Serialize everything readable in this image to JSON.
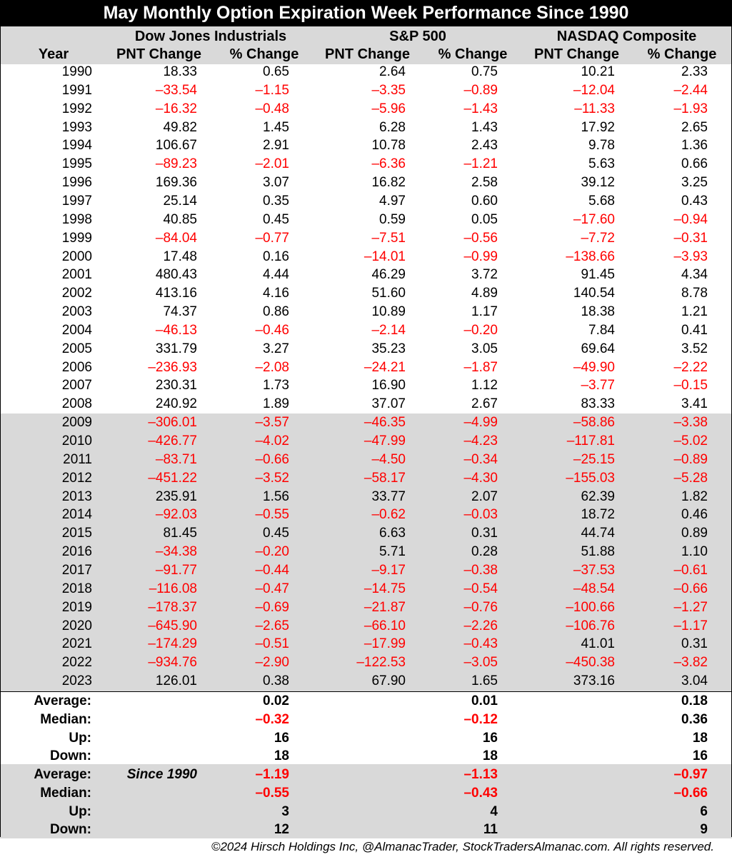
{
  "title": "May Monthly Option Expiration Week Performance Since 1990",
  "groups": [
    "Dow Jones Industrials",
    "S&P 500",
    "NASDAQ Composite"
  ],
  "columns": [
    "Year",
    "PNT Change",
    "% Change",
    "PNT Change",
    "% Change",
    "PNT Change",
    "% Change"
  ],
  "footer": "©2024 Hirsch Holdings Inc, @AlmanacTrader, StockTradersAlmanac.com. All rights reserved.",
  "colors": {
    "negative": "#ff0000",
    "shade": "#d9d9d9",
    "title_bg": "#000000"
  },
  "chart_data": {
    "type": "table",
    "title": "May Monthly Option Expiration Week Performance Since 1990",
    "rows": [
      [
        "1990",
        "18.33",
        "0.65",
        "2.64",
        "0.75",
        "10.21",
        "2.33"
      ],
      [
        "1991",
        "–33.54",
        "–1.15",
        "–3.35",
        "–0.89",
        "–12.04",
        "–2.44"
      ],
      [
        "1992",
        "–16.32",
        "–0.48",
        "–5.96",
        "–1.43",
        "–11.33",
        "–1.93"
      ],
      [
        "1993",
        "49.82",
        "1.45",
        "6.28",
        "1.43",
        "17.92",
        "2.65"
      ],
      [
        "1994",
        "106.67",
        "2.91",
        "10.78",
        "2.43",
        "9.78",
        "1.36"
      ],
      [
        "1995",
        "–89.23",
        "–2.01",
        "–6.36",
        "–1.21",
        "5.63",
        "0.66"
      ],
      [
        "1996",
        "169.36",
        "3.07",
        "16.82",
        "2.58",
        "39.12",
        "3.25"
      ],
      [
        "1997",
        "25.14",
        "0.35",
        "4.97",
        "0.60",
        "5.68",
        "0.43"
      ],
      [
        "1998",
        "40.85",
        "0.45",
        "0.59",
        "0.05",
        "–17.60",
        "–0.94"
      ],
      [
        "1999",
        "–84.04",
        "–0.77",
        "–7.51",
        "–0.56",
        "–7.72",
        "–0.31"
      ],
      [
        "2000",
        "17.48",
        "0.16",
        "–14.01",
        "–0.99",
        "–138.66",
        "–3.93"
      ],
      [
        "2001",
        "480.43",
        "4.44",
        "46.29",
        "3.72",
        "91.45",
        "4.34"
      ],
      [
        "2002",
        "413.16",
        "4.16",
        "51.60",
        "4.89",
        "140.54",
        "8.78"
      ],
      [
        "2003",
        "74.37",
        "0.86",
        "10.89",
        "1.17",
        "18.38",
        "1.21"
      ],
      [
        "2004",
        "–46.13",
        "–0.46",
        "–2.14",
        "–0.20",
        "7.84",
        "0.41"
      ],
      [
        "2005",
        "331.79",
        "3.27",
        "35.23",
        "3.05",
        "69.64",
        "3.52"
      ],
      [
        "2006",
        "–236.93",
        "–2.08",
        "–24.21",
        "–1.87",
        "–49.90",
        "–2.22"
      ],
      [
        "2007",
        "230.31",
        "1.73",
        "16.90",
        "1.12",
        "–3.77",
        "–0.15"
      ],
      [
        "2008",
        "240.92",
        "1.89",
        "37.07",
        "2.67",
        "83.33",
        "3.41"
      ],
      [
        "2009",
        "–306.01",
        "–3.57",
        "–46.35",
        "–4.99",
        "–58.86",
        "–3.38"
      ],
      [
        "2010",
        "–426.77",
        "–4.02",
        "–47.99",
        "–4.23",
        "–117.81",
        "–5.02"
      ],
      [
        "2011",
        "–83.71",
        "–0.66",
        "–4.50",
        "–0.34",
        "–25.15",
        "–0.89"
      ],
      [
        "2012",
        "–451.22",
        "–3.52",
        "–58.17",
        "–4.30",
        "–155.03",
        "–5.28"
      ],
      [
        "2013",
        "235.91",
        "1.56",
        "33.77",
        "2.07",
        "62.39",
        "1.82"
      ],
      [
        "2014",
        "–92.03",
        "–0.55",
        "–0.62",
        "–0.03",
        "18.72",
        "0.46"
      ],
      [
        "2015",
        "81.45",
        "0.45",
        "6.63",
        "0.31",
        "44.74",
        "0.89"
      ],
      [
        "2016",
        "–34.38",
        "–0.20",
        "5.71",
        "0.28",
        "51.88",
        "1.10"
      ],
      [
        "2017",
        "–91.77",
        "–0.44",
        "–9.17",
        "–0.38",
        "–37.53",
        "–0.61"
      ],
      [
        "2018",
        "–116.08",
        "–0.47",
        "–14.75",
        "–0.54",
        "–48.54",
        "–0.66"
      ],
      [
        "2019",
        "–178.37",
        "–0.69",
        "–21.87",
        "–0.76",
        "–100.66",
        "–1.27"
      ],
      [
        "2020",
        "–645.90",
        "–2.65",
        "–66.10",
        "–2.26",
        "–106.76",
        "–1.17"
      ],
      [
        "2021",
        "–174.29",
        "–0.51",
        "–17.99",
        "–0.43",
        "41.01",
        "0.31"
      ],
      [
        "2022",
        "–934.76",
        "–2.90",
        "–122.53",
        "–3.05",
        "–450.38",
        "–3.82"
      ],
      [
        "2023",
        "126.01",
        "0.38",
        "67.90",
        "1.65",
        "373.16",
        "3.04"
      ]
    ],
    "summary_1990": [
      {
        "label": "Average:",
        "dji": "0.02",
        "spx": "0.01",
        "ndx": "0.18"
      },
      {
        "label": "Median:",
        "dji": "–0.32",
        "spx": "–0.12",
        "ndx": "0.36"
      },
      {
        "label": "Up:",
        "dji": "16",
        "spx": "16",
        "ndx": "18"
      },
      {
        "label": "Down:",
        "dji": "18",
        "spx": "18",
        "ndx": "16"
      }
    ],
    "summary_2009_note": "Since 1990",
    "summary_2009": [
      {
        "label": "Average:",
        "dji": "–1.19",
        "spx": "–1.13",
        "ndx": "–0.97"
      },
      {
        "label": "Median:",
        "dji": "–0.55",
        "spx": "–0.43",
        "ndx": "–0.66"
      },
      {
        "label": "Up:",
        "dji": "3",
        "spx": "4",
        "ndx": "6"
      },
      {
        "label": "Down:",
        "dji": "12",
        "spx": "11",
        "ndx": "9"
      }
    ]
  }
}
